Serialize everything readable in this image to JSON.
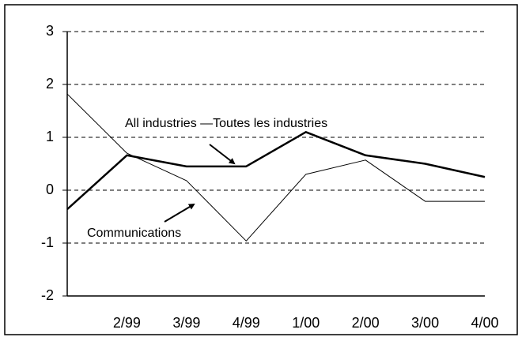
{
  "chart_data": {
    "type": "line",
    "categories": [
      null,
      "2/99",
      "3/99",
      "4/99",
      "1/00",
      "2/00",
      "3/00",
      "4/00"
    ],
    "series": [
      {
        "name": "All industries —Toutes les industries",
        "color": "#000000",
        "values": [
          -0.36,
          0.66,
          0.45,
          0.45,
          1.1,
          0.66,
          0.5,
          0.25
        ]
      },
      {
        "name": "Communications",
        "color": "#000000",
        "values": [
          1.82,
          0.7,
          0.18,
          -0.96,
          0.3,
          0.57,
          -0.21,
          -0.21
        ]
      }
    ],
    "ylim": [
      -2,
      3
    ],
    "yticks": [
      -2,
      -1,
      0,
      1,
      2,
      3
    ],
    "grid": true
  }
}
